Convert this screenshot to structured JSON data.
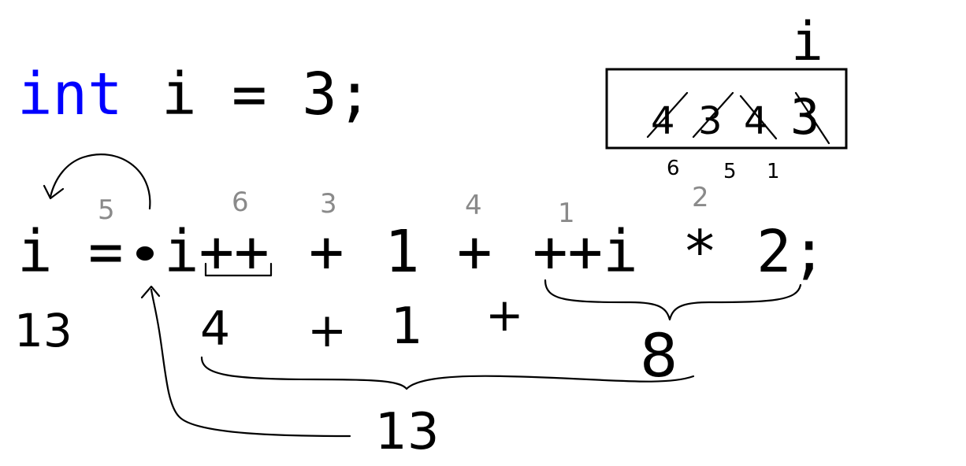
{
  "line1": {
    "keyword": "int",
    "rest": "i = 3;"
  },
  "var_box": {
    "label": "i",
    "history": [
      "4",
      "3",
      "4"
    ],
    "current": "3",
    "step_labels": [
      "6",
      "5",
      "1"
    ]
  },
  "line2": {
    "lhs": "i",
    "assign": "=",
    "operand1": "i++",
    "plus1": "+",
    "operand2": "1",
    "plus2": "+",
    "operand3": "++i",
    "mult": "*",
    "operand4": "2;"
  },
  "order_labels": {
    "assign": "5",
    "postinc": "6",
    "plus1": "3",
    "plus2": "4",
    "preinc": "1",
    "mult": "2"
  },
  "annotations": {
    "result_lhs": "13",
    "val_postinc": "4",
    "plus_a": "+",
    "val_one": "1",
    "plus_b": "+",
    "val_product": "8",
    "sum": "13"
  },
  "colors": {
    "keyword": "#0000ff",
    "text": "#000000",
    "order": "#8a8a8a"
  }
}
